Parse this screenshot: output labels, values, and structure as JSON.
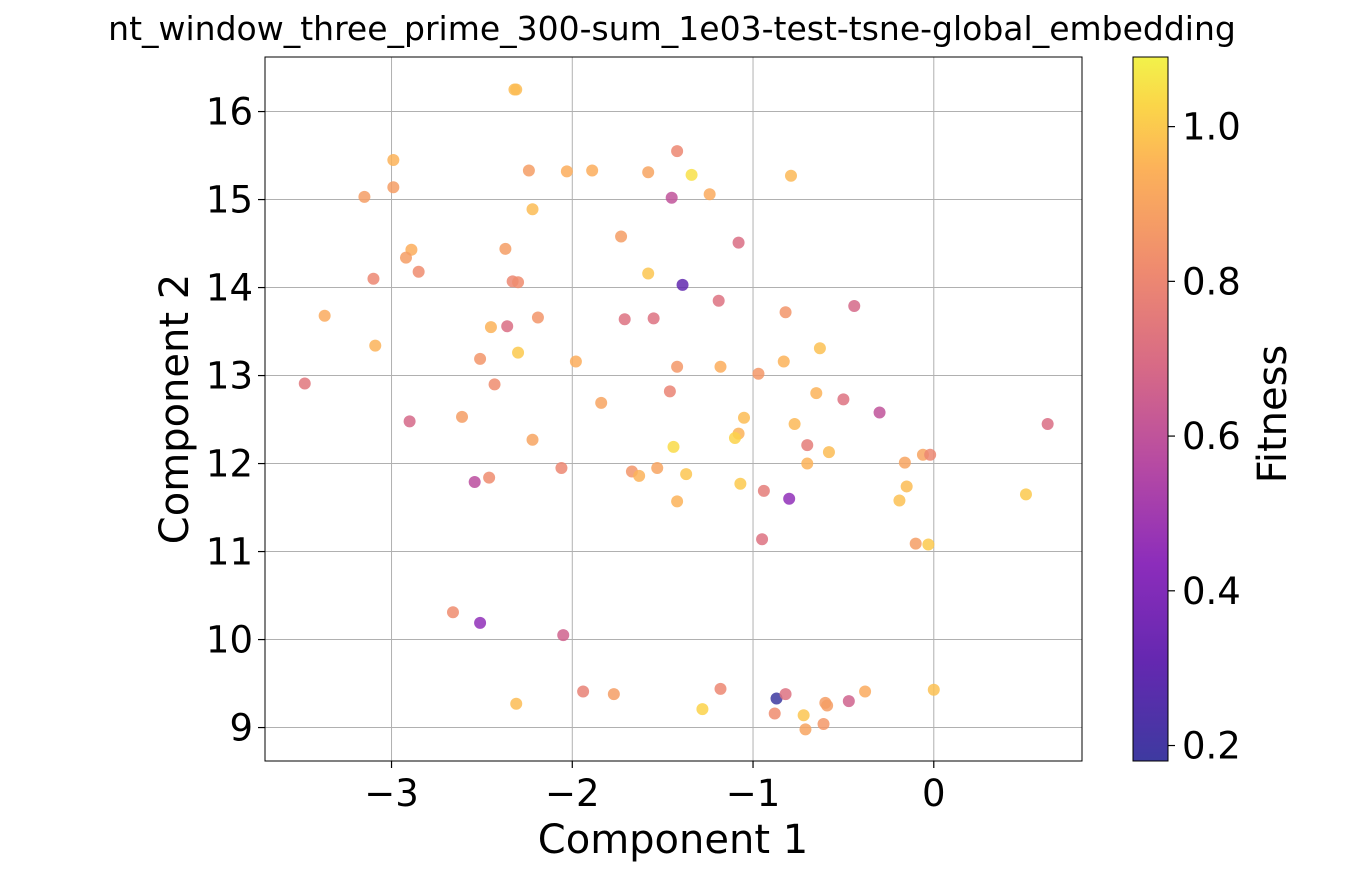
{
  "chart_data": {
    "type": "scatter",
    "title": "nt_window_three_prime_300-sum_1e03-test-tsne-global_embedding",
    "xlabel": "Component 1",
    "ylabel": "Component 2",
    "xlim": [
      -3.7,
      0.82
    ],
    "ylim": [
      8.62,
      16.62
    ],
    "x_ticks": [
      -3,
      -2,
      -1,
      0
    ],
    "x_tick_labels": [
      "−3",
      "−2",
      "−1",
      "0"
    ],
    "y_ticks": [
      9,
      10,
      11,
      12,
      13,
      14,
      15,
      16
    ],
    "y_tick_labels": [
      "9",
      "10",
      "11",
      "12",
      "13",
      "14",
      "15",
      "16"
    ],
    "grid": true,
    "colorbar": {
      "label": "Fitness",
      "range": [
        0.18,
        1.09
      ],
      "ticks": [
        0.2,
        0.4,
        0.6,
        0.8,
        1.0
      ],
      "tick_labels": [
        "0.2",
        "0.4",
        "0.6",
        "0.8",
        "1.0"
      ],
      "colormap": "plasma"
    },
    "points": [
      [
        -2.32,
        16.25,
        0.97
      ],
      [
        -2.31,
        16.25,
        0.97
      ],
      [
        -2.99,
        15.45,
        0.95
      ],
      [
        -2.99,
        15.14,
        0.88
      ],
      [
        -3.15,
        15.03,
        0.88
      ],
      [
        -2.24,
        15.33,
        0.88
      ],
      [
        -2.03,
        15.32,
        0.93
      ],
      [
        -1.89,
        15.33,
        0.93
      ],
      [
        -1.58,
        15.31,
        0.9
      ],
      [
        -1.42,
        15.55,
        0.8
      ],
      [
        -1.34,
        15.28,
        1.05
      ],
      [
        -1.24,
        15.06,
        0.92
      ],
      [
        -0.79,
        15.27,
        0.96
      ],
      [
        -2.22,
        14.89,
        0.97
      ],
      [
        -1.45,
        15.02,
        0.6
      ],
      [
        -1.73,
        14.58,
        0.88
      ],
      [
        -1.08,
        14.51,
        0.7
      ],
      [
        -2.89,
        14.43,
        0.93
      ],
      [
        -2.92,
        14.34,
        0.88
      ],
      [
        -2.37,
        14.44,
        0.88
      ],
      [
        -1.58,
        14.16,
        0.99
      ],
      [
        -3.1,
        14.1,
        0.8
      ],
      [
        -2.85,
        14.18,
        0.82
      ],
      [
        -2.33,
        14.07,
        0.8
      ],
      [
        -2.3,
        14.06,
        0.82
      ],
      [
        -1.39,
        14.03,
        0.3
      ],
      [
        -3.37,
        13.68,
        0.92
      ],
      [
        -2.19,
        13.66,
        0.85
      ],
      [
        -1.71,
        13.64,
        0.72
      ],
      [
        -1.55,
        13.65,
        0.72
      ],
      [
        -1.19,
        13.85,
        0.72
      ],
      [
        -0.82,
        13.72,
        0.85
      ],
      [
        -0.44,
        13.79,
        0.68
      ],
      [
        -2.45,
        13.55,
        0.95
      ],
      [
        -2.36,
        13.56,
        0.7
      ],
      [
        -3.09,
        13.34,
        0.95
      ],
      [
        -2.3,
        13.26,
        1.0
      ],
      [
        -2.51,
        13.19,
        0.85
      ],
      [
        -1.98,
        13.16,
        0.93
      ],
      [
        -0.63,
        13.31,
        0.98
      ],
      [
        -0.83,
        13.16,
        0.95
      ],
      [
        -1.42,
        13.1,
        0.86
      ],
      [
        -1.18,
        13.1,
        0.93
      ],
      [
        -0.97,
        13.02,
        0.86
      ],
      [
        -3.48,
        12.91,
        0.74
      ],
      [
        -2.43,
        12.9,
        0.82
      ],
      [
        -1.46,
        12.82,
        0.79
      ],
      [
        -0.65,
        12.8,
        0.95
      ],
      [
        -0.5,
        12.73,
        0.72
      ],
      [
        -0.3,
        12.58,
        0.6
      ],
      [
        -1.84,
        12.69,
        0.9
      ],
      [
        -2.9,
        12.48,
        0.68
      ],
      [
        -2.61,
        12.53,
        0.88
      ],
      [
        -1.05,
        12.52,
        0.97
      ],
      [
        -0.77,
        12.45,
        0.96
      ],
      [
        -1.08,
        12.34,
        0.95
      ],
      [
        -1.1,
        12.29,
        1.02
      ],
      [
        0.63,
        12.45,
        0.7
      ],
      [
        -2.22,
        12.27,
        0.9
      ],
      [
        -1.44,
        12.19,
        1.04
      ],
      [
        -0.7,
        12.21,
        0.76
      ],
      [
        -0.58,
        12.13,
        0.97
      ],
      [
        -0.7,
        12.0,
        0.95
      ],
      [
        -0.16,
        12.01,
        0.9
      ],
      [
        -0.06,
        12.1,
        0.9
      ],
      [
        -0.02,
        12.1,
        0.8
      ],
      [
        -2.06,
        11.95,
        0.8
      ],
      [
        -1.67,
        11.91,
        0.85
      ],
      [
        -1.53,
        11.95,
        0.9
      ],
      [
        -1.37,
        11.88,
        0.99
      ],
      [
        -1.63,
        11.86,
        0.95
      ],
      [
        -2.54,
        11.79,
        0.58
      ],
      [
        -2.46,
        11.84,
        0.82
      ],
      [
        -1.42,
        11.57,
        0.95
      ],
      [
        -1.07,
        11.77,
        1.0
      ],
      [
        -0.94,
        11.69,
        0.76
      ],
      [
        -0.8,
        11.6,
        0.45
      ],
      [
        -0.15,
        11.74,
        0.97
      ],
      [
        -0.19,
        11.58,
        0.98
      ],
      [
        0.51,
        11.65,
        1.0
      ],
      [
        -0.95,
        11.14,
        0.72
      ],
      [
        -0.1,
        11.09,
        0.88
      ],
      [
        -0.03,
        11.08,
        1.0
      ],
      [
        -2.66,
        10.31,
        0.82
      ],
      [
        -2.51,
        10.19,
        0.45
      ],
      [
        -2.05,
        10.05,
        0.66
      ],
      [
        -1.94,
        9.41,
        0.78
      ],
      [
        -1.77,
        9.38,
        0.88
      ],
      [
        -1.18,
        9.44,
        0.8
      ],
      [
        -0.87,
        9.33,
        0.18
      ],
      [
        -0.82,
        9.38,
        0.72
      ],
      [
        -0.6,
        9.28,
        0.88
      ],
      [
        -0.59,
        9.25,
        0.88
      ],
      [
        -0.47,
        9.3,
        0.66
      ],
      [
        -0.38,
        9.41,
        0.92
      ],
      [
        0.0,
        9.43,
        0.98
      ],
      [
        -2.31,
        9.27,
        0.97
      ],
      [
        -1.28,
        9.21,
        1.02
      ],
      [
        -0.88,
        9.16,
        0.82
      ],
      [
        -0.72,
        9.14,
        0.99
      ],
      [
        -0.61,
        9.04,
        0.86
      ],
      [
        -0.71,
        8.98,
        0.9
      ]
    ]
  }
}
